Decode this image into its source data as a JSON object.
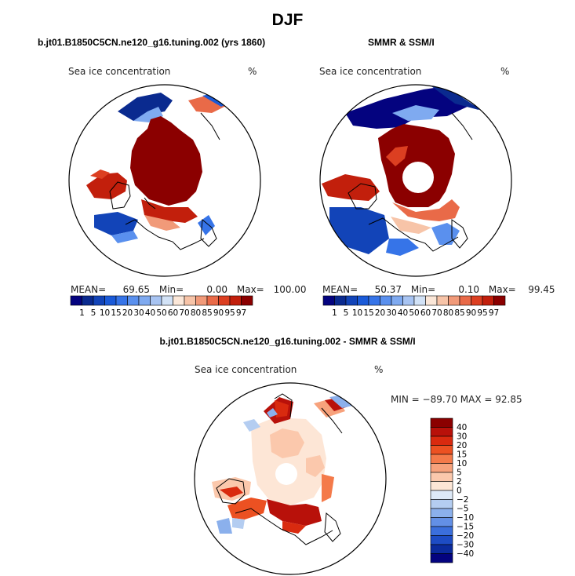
{
  "main_title": "DJF",
  "colors": {
    "land": "#ffffff",
    "coast": "#000000",
    "ice_high": "#8b0000",
    "ice_low": "#0a2a8f"
  },
  "panel1": {
    "title": "b.jt01.B1850C5CN.ne120_g16.tuning.002 (yrs 1860)",
    "var_label": "Sea ice concentration",
    "unit": "%",
    "stats": {
      "mean_label": "MEAN=",
      "mean": "69.65",
      "min_label": "Min=",
      "min": "0.00",
      "max_label": "Max=",
      "max": "100.00"
    }
  },
  "panel2": {
    "title": "SMMR & SSM/I",
    "var_label": "Sea ice concentration",
    "unit": "%",
    "stats": {
      "mean_label": "MEAN=",
      "mean": "50.37",
      "min_label": "Min=",
      "min": "0.10",
      "max_label": "Max=",
      "max": "99.45"
    }
  },
  "panel3": {
    "title": "b.jt01.B1850C5CN.ne120_g16.tuning.002 - SMMR & SSM/I",
    "var_label": "Sea ice concentration",
    "unit": "%",
    "minmax": "MIN = −89.70 MAX =   92.85"
  },
  "abs_colorbar": {
    "labels": [
      "1",
      "5",
      "10",
      "15",
      "20",
      "30",
      "40",
      "50",
      "60",
      "70",
      "80",
      "85",
      "90",
      "95",
      "97"
    ],
    "colors": [
      "#04037f",
      "#0a2a8f",
      "#1244b8",
      "#1a5ad8",
      "#3674e8",
      "#5a90ee",
      "#7faaf0",
      "#a8c4f2",
      "#d2e2f6",
      "#fbe7d8",
      "#f7c4a8",
      "#f19a79",
      "#e96a48",
      "#dc3f21",
      "#c21f0c",
      "#8b0000"
    ]
  },
  "diff_colorbar": {
    "labels": [
      "40",
      "30",
      "20",
      "15",
      "10",
      "5",
      "2",
      "0",
      "−2",
      "−5",
      "−10",
      "−15",
      "−20",
      "−30",
      "−40"
    ],
    "colors": [
      "#8b0000",
      "#b8110a",
      "#d92a0f",
      "#ec5122",
      "#f47a4a",
      "#f7a27c",
      "#fbc8ac",
      "#fde6d6",
      "#dde9f7",
      "#b4cdf1",
      "#8bb0ec",
      "#6390e6",
      "#3b6fdc",
      "#1d4cc4",
      "#0b2b9d",
      "#04037f"
    ]
  },
  "chart_data": [
    {
      "type": "heatmap",
      "title": "b.jt01.B1850C5CN.ne120_g16.tuning.002 (yrs 1860)",
      "variable": "Sea ice concentration",
      "unit": "%",
      "season": "DJF",
      "mean": 69.65,
      "min": 0.0,
      "max": 100.0,
      "levels": [
        1,
        5,
        10,
        15,
        20,
        30,
        40,
        50,
        60,
        70,
        80,
        85,
        90,
        95,
        97
      ]
    },
    {
      "type": "heatmap",
      "title": "SMMR & SSM/I",
      "variable": "Sea ice concentration",
      "unit": "%",
      "season": "DJF",
      "mean": 50.37,
      "min": 0.1,
      "max": 99.45,
      "levels": [
        1,
        5,
        10,
        15,
        20,
        30,
        40,
        50,
        60,
        70,
        80,
        85,
        90,
        95,
        97
      ]
    },
    {
      "type": "heatmap",
      "title": "b.jt01.B1850C5CN.ne120_g16.tuning.002 - SMMR & SSM/I",
      "variable": "Sea ice concentration",
      "unit": "%",
      "season": "DJF",
      "min": -89.7,
      "max": 92.85,
      "levels": [
        -40,
        -30,
        -20,
        -15,
        -10,
        -5,
        -2,
        0,
        2,
        5,
        10,
        15,
        20,
        30,
        40
      ]
    }
  ]
}
